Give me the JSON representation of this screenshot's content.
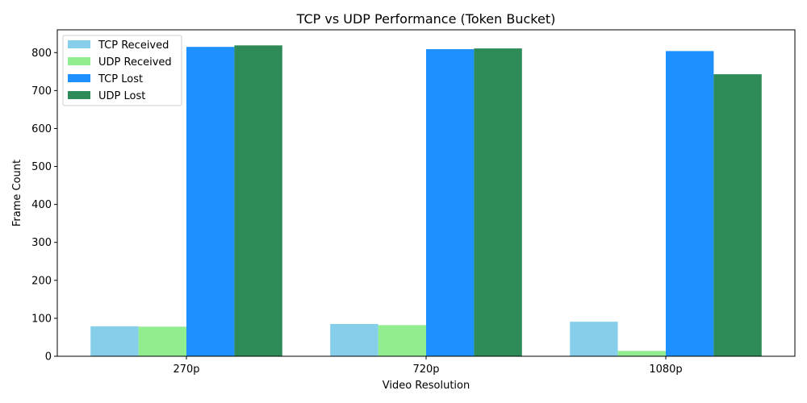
{
  "chart_data": {
    "type": "bar",
    "title": "TCP vs UDP Performance (Token Bucket)",
    "xlabel": "Video Resolution",
    "ylabel": "Frame Count",
    "categories": [
      "270p",
      "720p",
      "1080p"
    ],
    "ylim": [
      0,
      860
    ],
    "yticks": [
      0,
      100,
      200,
      300,
      400,
      500,
      600,
      700,
      800
    ],
    "legend_position": "top-left",
    "grid": false,
    "series": [
      {
        "name": "TCP Received",
        "color": "#87ceeb",
        "values": [
          79,
          85,
          91
        ]
      },
      {
        "name": "UDP Received",
        "color": "#90ee90",
        "values": [
          78,
          82,
          14
        ]
      },
      {
        "name": "TCP Lost",
        "color": "#1e90ff",
        "values": [
          815,
          809,
          804
        ]
      },
      {
        "name": "UDP Lost",
        "color": "#2e8b57",
        "values": [
          819,
          811,
          743
        ]
      }
    ]
  }
}
